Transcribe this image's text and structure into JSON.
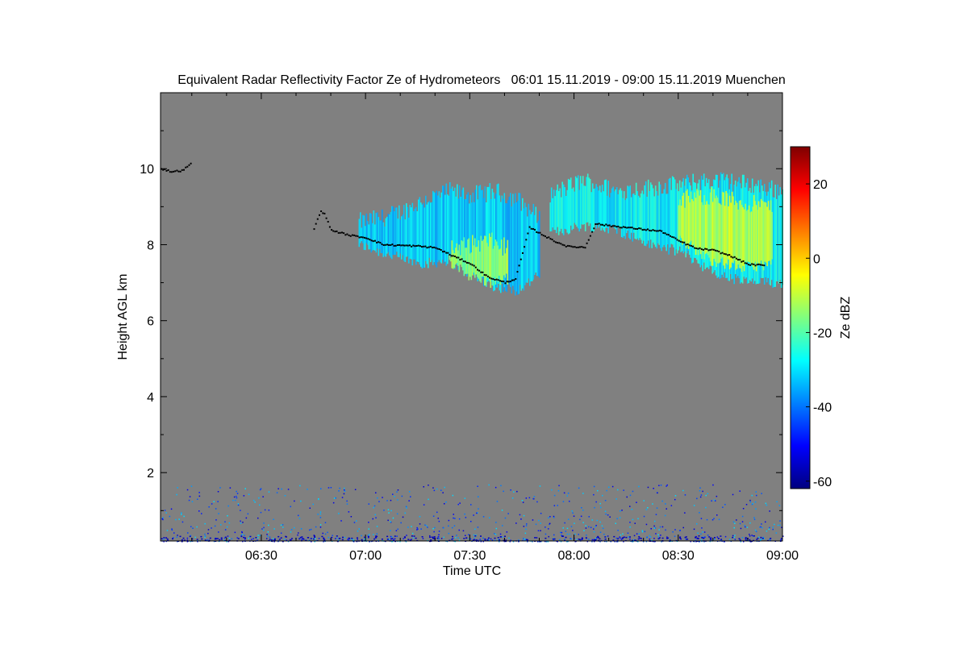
{
  "chart_data": {
    "type": "heatmap",
    "title": "Equivalent Radar Reflectivity Factor Ze of Hydrometeors   06:01 15.11.2019 - 09:00 15.11.2019 Muenchen",
    "xlabel": "Time UTC",
    "ylabel": "Height AGL km",
    "x_unit": "minutes after 06:00 UTC",
    "xlim": [
      1,
      180
    ],
    "ylim": [
      0.2,
      12.0
    ],
    "x_ticks": [
      {
        "value": 30,
        "label": "06:30"
      },
      {
        "value": 60,
        "label": "07:00"
      },
      {
        "value": 90,
        "label": "07:30"
      },
      {
        "value": 120,
        "label": "08:00"
      },
      {
        "value": 150,
        "label": "08:30"
      },
      {
        "value": 180,
        "label": "09:00"
      }
    ],
    "y_ticks": [
      {
        "value": 2,
        "label": "2"
      },
      {
        "value": 4,
        "label": "4"
      },
      {
        "value": 6,
        "label": "6"
      },
      {
        "value": 8,
        "label": "8"
      },
      {
        "value": 10,
        "label": "10"
      }
    ],
    "colorbar": {
      "label": "Ze dBZ",
      "range": [
        -62,
        30
      ],
      "ticks": [
        {
          "value": -60,
          "label": "-60"
        },
        {
          "value": -40,
          "label": "-40"
        },
        {
          "value": -20,
          "label": "-20"
        },
        {
          "value": 0,
          "label": "0"
        },
        {
          "value": 20,
          "label": "20"
        }
      ],
      "colormap": "jet"
    },
    "background_color": "#808080",
    "cloud_layers": [
      {
        "name": "layer-a",
        "x_start": 58,
        "x_end": 110,
        "top": [
          8.6,
          8.7,
          8.9,
          9.2,
          9.4,
          9.3,
          9.4,
          9.2,
          8.7
        ],
        "bottom": [
          8.0,
          7.8,
          7.6,
          7.5,
          7.6,
          7.2,
          6.9,
          6.8,
          7.2
        ],
        "dbz": -32
      },
      {
        "name": "layer-a-core",
        "x_start": 84,
        "x_end": 101,
        "top": [
          7.9,
          8.0,
          8.1,
          7.9
        ],
        "bottom": [
          7.5,
          7.2,
          7.0,
          7.1
        ],
        "dbz": -14
      },
      {
        "name": "layer-b",
        "x_start": 113,
        "x_end": 180,
        "top": [
          9.3,
          9.7,
          9.4,
          9.5,
          9.6,
          9.7,
          9.6,
          9.4
        ],
        "bottom": [
          8.3,
          8.5,
          8.4,
          8.0,
          7.8,
          7.2,
          7.0,
          7.0
        ],
        "dbz": -28
      },
      {
        "name": "layer-b-core",
        "x_start": 150,
        "x_end": 177,
        "top": [
          9.2,
          9.3,
          9.1,
          9.0
        ],
        "bottom": [
          8.2,
          7.6,
          7.4,
          7.5
        ],
        "dbz": -10
      }
    ],
    "cloud_base_points": [
      [
        1,
        10.0
      ],
      [
        4,
        9.92
      ],
      [
        7,
        9.95
      ],
      [
        9,
        10.08
      ],
      [
        10,
        10.2
      ],
      [
        45,
        8.42
      ],
      [
        47,
        8.9
      ],
      [
        48,
        8.8
      ],
      [
        50,
        8.38
      ],
      [
        55,
        8.25
      ],
      [
        60,
        8.18
      ],
      [
        65,
        8.0
      ],
      [
        70,
        7.98
      ],
      [
        75,
        7.96
      ],
      [
        80,
        7.92
      ],
      [
        85,
        7.7
      ],
      [
        90,
        7.5
      ],
      [
        95,
        7.15
      ],
      [
        100,
        7.0
      ],
      [
        103,
        7.1
      ],
      [
        107,
        8.45
      ],
      [
        110,
        8.3
      ],
      [
        114,
        8.1
      ],
      [
        118,
        7.95
      ],
      [
        123,
        7.93
      ],
      [
        126,
        8.55
      ],
      [
        130,
        8.5
      ],
      [
        135,
        8.45
      ],
      [
        140,
        8.4
      ],
      [
        145,
        8.35
      ],
      [
        150,
        8.1
      ],
      [
        155,
        7.9
      ],
      [
        160,
        7.85
      ],
      [
        165,
        7.7
      ],
      [
        170,
        7.48
      ],
      [
        175,
        7.45
      ]
    ],
    "near_surface_noise": {
      "height_max": 1.7,
      "dbz_range": [
        -55,
        -30
      ]
    }
  }
}
